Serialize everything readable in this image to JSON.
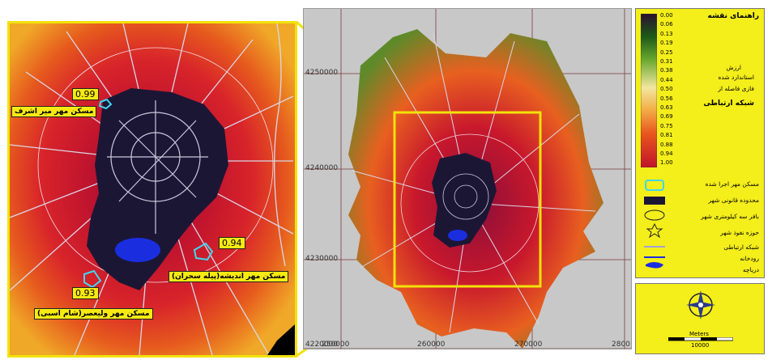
{
  "inset": {
    "labels": {
      "mir_ashraf": "مسکن مهر میر اشرف",
      "andisheh": "مسکن مهر اندیشه(پیله سحران)",
      "valiasr": "مسکن مهر ولیعصر(شام اسبی)"
    },
    "values": {
      "v1": "0.99",
      "v2": "0.94",
      "v3": "0.93"
    }
  },
  "main": {
    "y_ticks": [
      "4250000",
      "4240000",
      "4230000",
      "4220000"
    ],
    "x_ticks": [
      "250000",
      "260000",
      "270000",
      "2800"
    ]
  },
  "legend": {
    "title": "راهنمای نقشه",
    "ramp_values": [
      "0.00",
      "0.06",
      "0.13",
      "0.19",
      "0.25",
      "0.31",
      "0.38",
      "0.44",
      "0.50",
      "0.56",
      "0.63",
      "0.69",
      "0.75",
      "0.81",
      "0.88",
      "0.94",
      "1.00"
    ],
    "ramp_desc_1": "ارزش",
    "ramp_desc_2": "استاندارد شده",
    "ramp_desc_3": "فازی فاصله از",
    "ramp_desc_4": "شبکه ارتباطی",
    "items": [
      "مسکن مهر اجرا شده",
      "محدوده قانونی شهر",
      "بافر سه کیلومتری شهر",
      "حوزه نفوذ شهر",
      "شبکه ارتباطی",
      "رودخانه",
      "دریاچه"
    ]
  },
  "scale": {
    "units": "Meters",
    "value": "10000"
  },
  "colors": {
    "frame_yellow": "#f2e20a",
    "urban": "#1c1635",
    "lake": "#1a2ee0",
    "mehr": "#3fd8f0",
    "road": "#d8d8e8"
  }
}
